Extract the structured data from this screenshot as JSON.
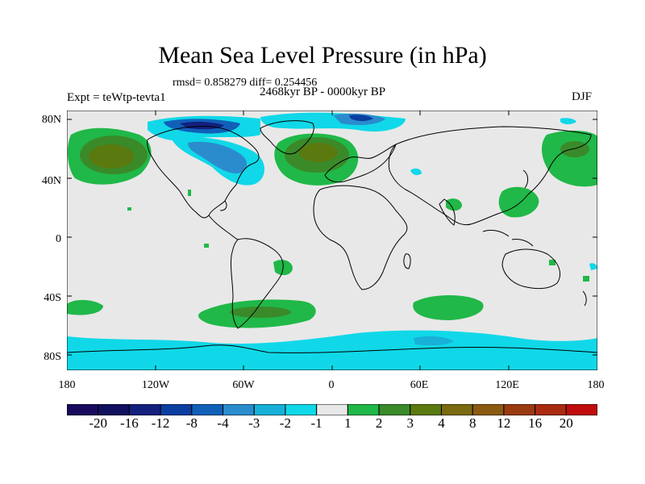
{
  "title": "Mean Sea Level Pressure (in hPa)",
  "stats": "rmsd= 0.858279 diff= 0.254456",
  "experiment": "Expt = teWtp-tevta1",
  "period": "2468kyr BP - 0000kyr BP",
  "season": "DJF",
  "y_labels": [
    "80N",
    "40N",
    "0",
    "40S",
    "80S"
  ],
  "x_labels": [
    "180",
    "120W",
    "60W",
    "0",
    "60E",
    "120E",
    "180"
  ],
  "colorbar": {
    "colors": [
      "#1a0a5e",
      "#10105e",
      "#13207e",
      "#0a3ea0",
      "#1060b8",
      "#2a8ccd",
      "#18b0d8",
      "#10d8e8",
      "#e8e8e8",
      "#20b848",
      "#3a8a2a",
      "#5a7a10",
      "#7a6a10",
      "#8a5a10",
      "#9a3a10",
      "#aa2a10",
      "#c00c0c"
    ],
    "labels": [
      "-20",
      "-16",
      "-12",
      "-8",
      "-4",
      "-3",
      "-2",
      "-1",
      "1",
      "2",
      "3",
      "4",
      "8",
      "12",
      "16",
      "20"
    ]
  },
  "colors": {
    "ocean_background": "#e8e8e8",
    "positive_green": "#20b848",
    "positive_dark": "#5a7a10",
    "negative_cyan": "#10d8e8",
    "negative_blue": "#1060b8",
    "negative_dark": "#13207e"
  }
}
